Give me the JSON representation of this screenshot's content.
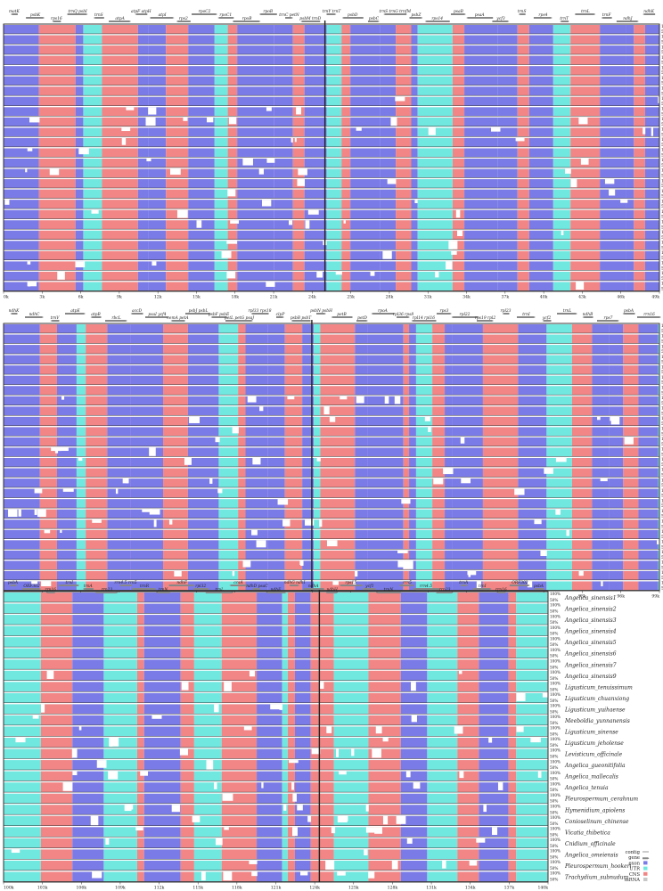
{
  "colors": {
    "exon": "#7b7be8",
    "utr": "#70e8e0",
    "cns": "#f28585",
    "mrna": "#c8c8c8",
    "gene_arrow": "#888888",
    "panel_border": "#222222",
    "background": "#ffffff"
  },
  "legend": [
    {
      "label": "contig",
      "symbol": "contig-symbol",
      "color": "#ffffff"
    },
    {
      "label": "gene",
      "symbol": "gene-arrow",
      "color": "#888888"
    },
    {
      "label": "exon",
      "symbol": "swatch",
      "color": "#7b7be8"
    },
    {
      "label": "UTR",
      "symbol": "swatch",
      "color": "#70e8e0"
    },
    {
      "label": "CNS",
      "symbol": "swatch",
      "color": "#f28585"
    },
    {
      "label": "mRNA",
      "symbol": "swatch",
      "color": "#c8c8c8"
    }
  ],
  "percent_labels": {
    "top": "100%",
    "mid": "50%"
  },
  "species": [
    "Angelica_sinensis1",
    "Angelica_sinensis2",
    "Angelica_sinensis3",
    "Angelica_sinensis4",
    "Angelica_sinensis5",
    "Angelica_sinensis6",
    "Angelica_sinensis7",
    "Angelica_sinensis9",
    "Ligusticum_tenuissimum",
    "Ligusticum_chuanxiong",
    "Ligusticum_yuihaense",
    "Meeboldia_yunnanensis",
    "Ligusticum_sinense",
    "Ligusticum_jeholense",
    "Levisticum_officinale",
    "Angelica_gueonitifolia",
    "Angelica_mallecalis",
    "Angelica_tenuia",
    "Pleurospermum_cerahnum",
    "Hymenidium_apiolens",
    "Conioselinum_chinense",
    "Vicatia_thibetica",
    "Cnidium_officinale",
    "Angelica_omeiensis",
    "Pleurospermum_hookeri",
    "Trachydium_subnudum"
  ],
  "panels": [
    {
      "ticks": [
        "0k",
        "3k",
        "6k",
        "9k",
        "12k",
        "15k",
        "18k",
        "21k",
        "24k",
        "25k",
        "28k",
        "31k",
        "34k",
        "37k",
        "40k",
        "43k",
        "46k",
        "49k"
      ],
      "genes": [
        "matK",
        "psbK",
        "rps16",
        "trnQ psbI",
        "trnS",
        "atpA",
        "atpF atpH",
        "atpI",
        "rps2",
        "rpoC2",
        "rpoC1",
        "rpoB",
        "rpoB",
        "trnC petN",
        "psbM trnD",
        "trnY trnT",
        "psbD",
        "psbC",
        "trnS trnG trnfM",
        "psbZ",
        "rps14",
        "psaB",
        "psaA",
        "ycf3",
        "trnS",
        "rps4",
        "trnT",
        "trnL",
        "trnF",
        "ndhJ",
        "ndhK"
      ],
      "gaps": [
        {
          "row": 6,
          "label": "gap"
        }
      ]
    },
    {
      "ticks": [
        "50k",
        "53k",
        "56k",
        "59k",
        "62k",
        "65k",
        "68k",
        "71k",
        "74k",
        "75k",
        "78k",
        "81k",
        "84k",
        "87k",
        "90k",
        "93k",
        "96k",
        "99k"
      ],
      "genes": [
        "ndhK",
        "ndhC",
        "trnV",
        "atpE",
        "atpB",
        "rbcL",
        "accD",
        "psaI ycf4",
        "cemA petA",
        "psbJ psbL",
        "psbF psbE",
        "petL petG psaJ",
        "rpl33 rps18",
        "clpP",
        "psbB psbT",
        "psbN psbH",
        "petB",
        "petD",
        "rpoA",
        "rpl36 rps8",
        "rpl14 rpl16",
        "rps3",
        "rpl22",
        "rps19 rpl2",
        "rpl23",
        "trnI",
        "ycf2",
        "trnL",
        "ndhB",
        "rps7",
        "psbA",
        "rrn16"
      ]
    },
    {
      "ticks": [
        "100k",
        "103k",
        "106k",
        "109k",
        "112k",
        "115k",
        "118k",
        "121k",
        "124k",
        "125k",
        "128k",
        "131k",
        "134k",
        "137k",
        "140k"
      ],
      "genes": [
        "psbA",
        "ORF302",
        "rrn16",
        "trnI",
        "trnA",
        "rrn23",
        "rrn4.5 rrn5",
        "trnR",
        "trnN",
        "ndhF",
        "rpl32",
        "trnL",
        "ccsA",
        "ndhD psaC",
        "ndhE",
        "ndhG ndhI",
        "ndhA",
        "ndhH",
        "rps15",
        "ycf1",
        "trnN",
        "rrn5",
        "rrn4.5",
        "rrn23",
        "trnA",
        "trnI",
        "rrn16",
        "ORF302",
        "psbA"
      ]
    }
  ]
}
